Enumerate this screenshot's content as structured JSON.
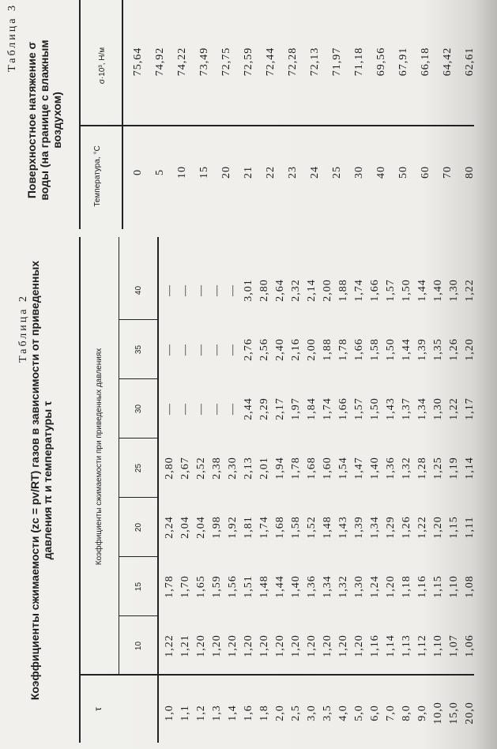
{
  "table2": {
    "label": "Таблица 2",
    "title_line1": "Коэффициенты сжимаемости (zᴄ = pv/RT) газов в зависимости от приведенных",
    "title_line2": "давления π и температуры τ",
    "row_header": "τ",
    "group_header": "Коэффициенты сжимаемости при приведенных давлениях",
    "pressures": [
      "10",
      "15",
      "20",
      "25",
      "30",
      "35",
      "40"
    ],
    "tau": [
      "1,0",
      "1,1",
      "1,2",
      "1,3",
      "1,4",
      "1,6",
      "1,8",
      "2,0",
      "2,5",
      "3,0",
      "3,5",
      "4,0",
      "5,0",
      "6,0",
      "7,0",
      "8,0",
      "9,0",
      "10,0",
      "15,0",
      "20,0"
    ],
    "columns": [
      [
        "1,22",
        "1,21",
        "1,20",
        "1,20",
        "1,20",
        "1,20",
        "1,20",
        "1,20",
        "1,20",
        "1,20",
        "1,20",
        "1,20",
        "1,20",
        "1,16",
        "1,14",
        "1,13",
        "1,12",
        "1,10",
        "1,07",
        "1,06"
      ],
      [
        "1,78",
        "1,70",
        "1,65",
        "1,59",
        "1,56",
        "1,51",
        "1,48",
        "1,44",
        "1,40",
        "1,36",
        "1,34",
        "1,32",
        "1,30",
        "1,24",
        "1,20",
        "1,18",
        "1,16",
        "1,15",
        "1,10",
        "1,08"
      ],
      [
        "2,24",
        "2,04",
        "2,04",
        "1,98",
        "1,92",
        "1,81",
        "1,74",
        "1,68",
        "1,58",
        "1,52",
        "1,48",
        "1,43",
        "1,39",
        "1,34",
        "1,29",
        "1,26",
        "1,22",
        "1,20",
        "1,15",
        "1,11"
      ],
      [
        "2,80",
        "2,67",
        "2,52",
        "2,38",
        "2,30",
        "2,13",
        "2,01",
        "1,94",
        "1,78",
        "1,68",
        "1,60",
        "1,54",
        "1,47",
        "1,40",
        "1,36",
        "1,32",
        "1,28",
        "1,25",
        "1,19",
        "1,14"
      ],
      [
        "—",
        "—",
        "—",
        "—",
        "—",
        "2,44",
        "2,29",
        "2,17",
        "1,97",
        "1,84",
        "1,74",
        "1,66",
        "1,57",
        "1,50",
        "1,43",
        "1,37",
        "1,34",
        "1,30",
        "1,22",
        "1,17"
      ],
      [
        "—",
        "—",
        "—",
        "—",
        "—",
        "2,76",
        "2,56",
        "2,40",
        "2,16",
        "2,00",
        "1,88",
        "1,78",
        "1,66",
        "1,58",
        "1,50",
        "1,44",
        "1,39",
        "1,35",
        "1,26",
        "1,20"
      ],
      [
        "—",
        "—",
        "—",
        "—",
        "—",
        "3,01",
        "2,80",
        "2,64",
        "2,32",
        "2,14",
        "2,00",
        "1,88",
        "1,74",
        "1,66",
        "1,57",
        "1,50",
        "1,44",
        "1,40",
        "1,30",
        "1,22"
      ]
    ]
  },
  "table3": {
    "label": "Таблица 3",
    "title_line1": "Поверхностное натяжение σ",
    "title_line2": "воды (на границе с влажным",
    "title_line3": "воздухом)",
    "col1_header": "Температура, °C",
    "col2_header": "σ·10³, Н/м",
    "temperature": [
      "0",
      "5",
      "10",
      "15",
      "20",
      "21",
      "22",
      "23",
      "24",
      "25",
      "30",
      "40",
      "50",
      "60",
      "70",
      "80"
    ],
    "sigma": [
      "75,64",
      "74,92",
      "74,22",
      "73,49",
      "72,75",
      "72,59",
      "72,44",
      "72,28",
      "72,13",
      "71,97",
      "71,18",
      "69,56",
      "67,91",
      "66,18",
      "64,42",
      "62,61"
    ]
  }
}
